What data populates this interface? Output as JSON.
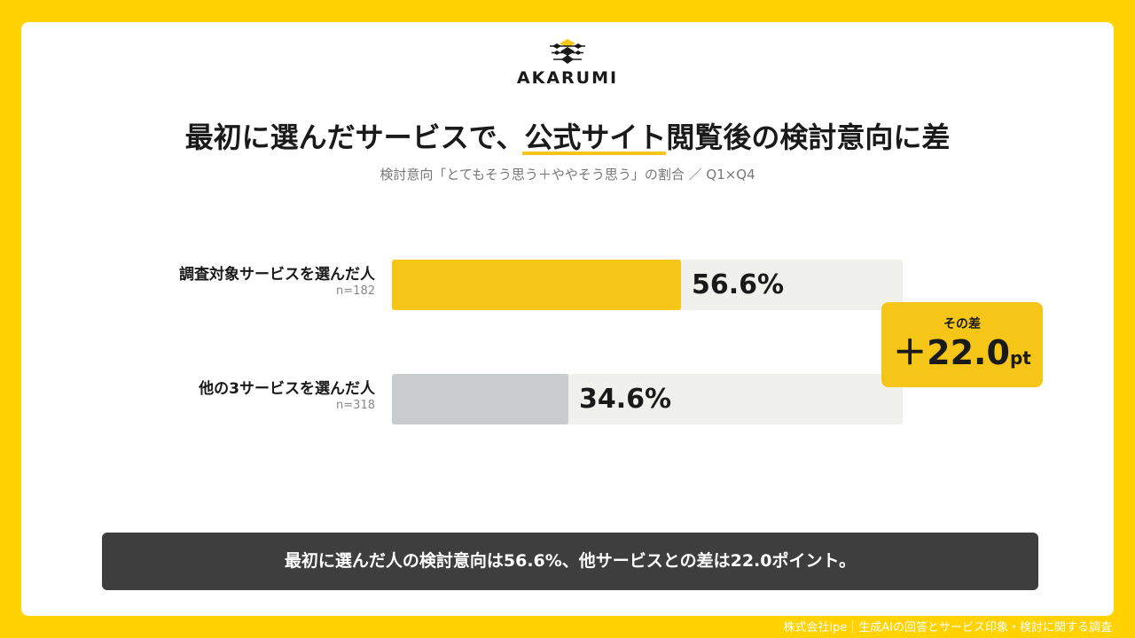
{
  "brand": {
    "logo_text": "AKARUMI"
  },
  "header": {
    "title_part1": "最初に選んだサービスで、",
    "title_highlight": "公式サイト",
    "title_part2": "閲覧後の検討意向に差",
    "subtitle": "検討意向「とてもそう思う＋ややそう思う」の割合 ／ Q1×Q4"
  },
  "chart_data": {
    "type": "bar",
    "orientation": "horizontal",
    "categories": [
      "調査対象サービスを選んだ人",
      "他の3サービスを選んだ人"
    ],
    "sample_sizes": [
      "n=182",
      "n=318"
    ],
    "values": [
      56.6,
      34.6
    ],
    "value_labels": [
      "56.6%",
      "34.6%"
    ],
    "xlim": [
      0,
      100
    ],
    "colors": [
      "#F5C518",
      "#C8CCCF"
    ],
    "track_color": "#F0F0EC"
  },
  "difference": {
    "label": "その差",
    "value": "＋22.0",
    "unit": "pt"
  },
  "summary": {
    "text": "最初に選んだ人の検討意向は56.6%、他サービスとの差は22.0ポイント。"
  },
  "footer": {
    "text": "株式会社ipe｜生成AIの回答とサービス印象・検討に関する調査"
  }
}
